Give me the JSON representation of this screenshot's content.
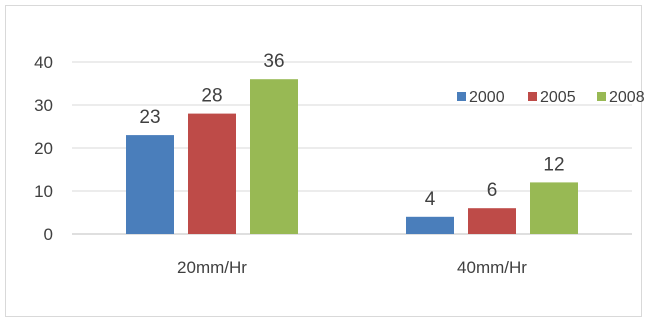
{
  "chart_data": {
    "type": "bar",
    "categories": [
      "20mm/Hr",
      "40mm/Hr"
    ],
    "series": [
      {
        "name": "2000",
        "values": [
          23,
          4
        ],
        "color": "#4a7ebb"
      },
      {
        "name": "2005",
        "values": [
          28,
          6
        ],
        "color": "#be4b48"
      },
      {
        "name": "2008",
        "values": [
          36,
          12
        ],
        "color": "#98b954"
      }
    ],
    "yticks": [
      "0",
      "10",
      "20",
      "30",
      "40"
    ],
    "ylim": [
      0,
      40
    ],
    "grid": true,
    "legend_position": "top-right",
    "title": "",
    "xlabel": "",
    "ylabel": ""
  }
}
